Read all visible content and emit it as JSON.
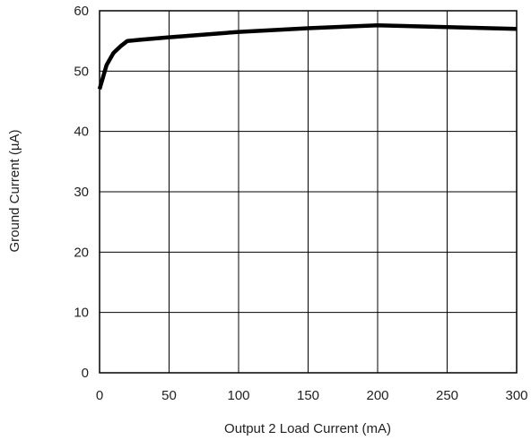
{
  "chart_data": {
    "type": "line",
    "xlabel": "Output 2 Load Current (mA)",
    "ylabel": "Ground Current (µA)",
    "xlim": [
      0,
      300
    ],
    "ylim": [
      0,
      60
    ],
    "xticks": [
      0,
      50,
      100,
      150,
      200,
      250,
      300
    ],
    "yticks": [
      0,
      10,
      20,
      30,
      40,
      50,
      60
    ],
    "xtick_labels": [
      "0",
      "50",
      "100",
      "150",
      "200",
      "250",
      "300"
    ],
    "ytick_labels": [
      "0",
      "10",
      "20",
      "30",
      "40",
      "50",
      "60"
    ],
    "grid": true,
    "legend": "none",
    "series": [
      {
        "color": "#000000",
        "x": [
          0,
          5,
          10,
          15,
          20,
          30,
          50,
          100,
          150,
          200,
          250,
          300
        ],
        "y": [
          47,
          51,
          53,
          54.1,
          55,
          55.2,
          55.6,
          56.5,
          57.1,
          57.6,
          57.3,
          57
        ]
      }
    ]
  }
}
